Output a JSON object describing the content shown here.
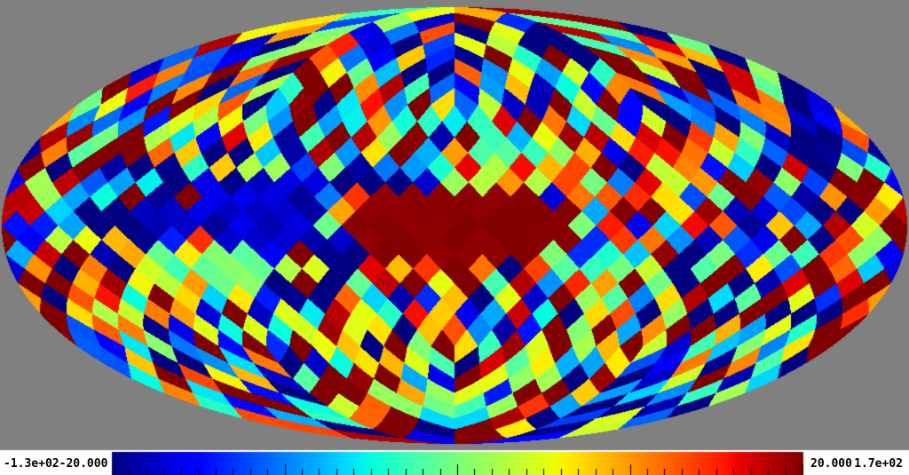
{
  "page": {
    "background_color": "#808080",
    "footer_strip_color": "#ffffff"
  },
  "colorbar": {
    "min_label": "-1.3e+02",
    "tick_low_label": "-20.000",
    "tick_high_label": "20.000",
    "max_label": "1.7e+02",
    "tick_color": "#000000"
  },
  "chart_data": {
    "type": "heatmap",
    "subtype": "healpix-mollweide-skymap",
    "projection": "mollweide",
    "pixelization": "healpix",
    "nside": 8,
    "npix": 768,
    "value_min": -130,
    "value_max": 170,
    "colorbar_tick_values": [
      -130,
      -20,
      20,
      170
    ],
    "colorbar_tick_labels": [
      "-1.3e+02",
      "-20.000",
      "20.000",
      "1.7e+02"
    ],
    "colormap": {
      "name": "jet",
      "stops": [
        [
          0.0,
          "#000080"
        ],
        [
          0.11,
          "#0000ff"
        ],
        [
          0.125,
          "#0000ff"
        ],
        [
          0.34,
          "#00dbff"
        ],
        [
          0.375,
          "#00ffe2"
        ],
        [
          0.45,
          "#52ffa5"
        ],
        [
          0.55,
          "#a4ff52"
        ],
        [
          0.64,
          "#eeff08"
        ],
        [
          0.66,
          "#ffec00"
        ],
        [
          0.75,
          "#ff9700"
        ],
        [
          0.89,
          "#ff1300"
        ],
        [
          0.91,
          "#e80000"
        ],
        [
          1.0,
          "#800000"
        ]
      ]
    },
    "background_color": "#808080",
    "features": [
      {
        "name": "saturated-equatorial-band-at-center",
        "color": "#800000"
      },
      {
        "name": "dark-blue-cluster-left-of-center",
        "color": "#000080"
      }
    ],
    "random_seed": 42
  }
}
